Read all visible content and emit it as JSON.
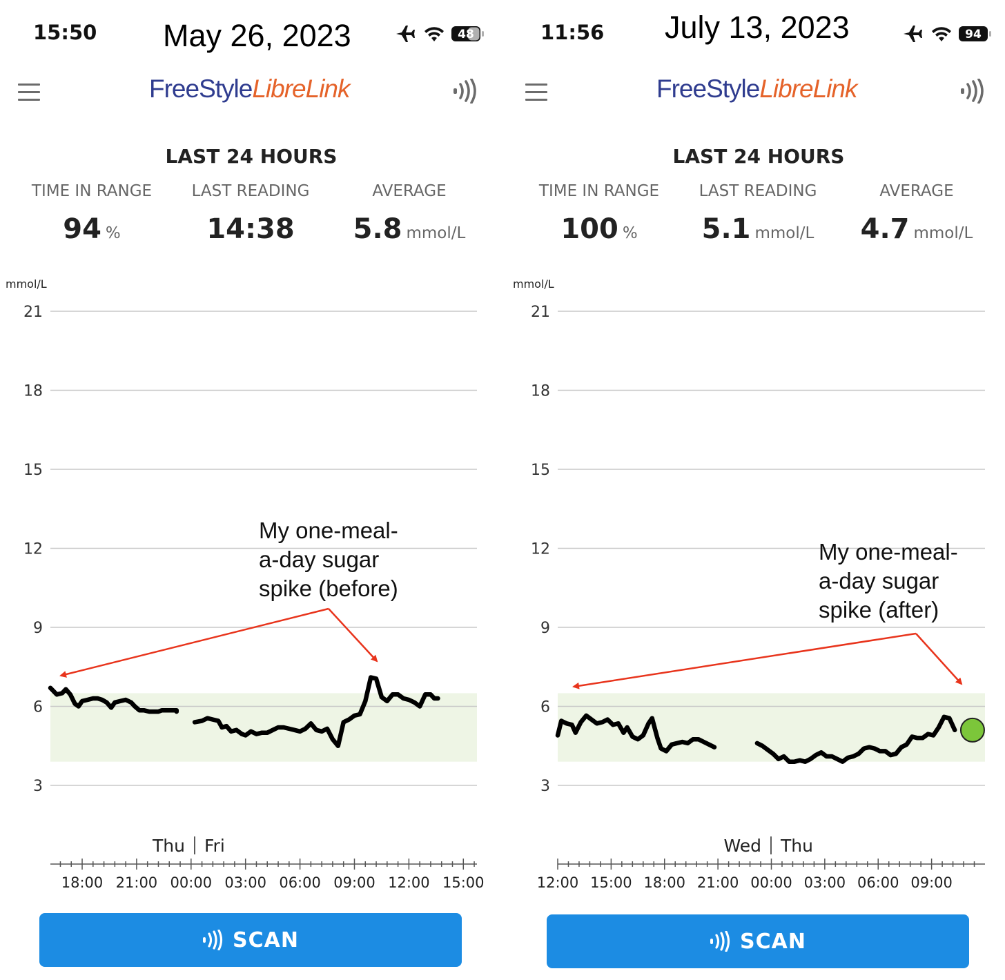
{
  "panels": [
    {
      "status_time": "15:50",
      "date": "May 26, 2023",
      "battery": "48",
      "app_logo": {
        "part1": "FreeStyle",
        "part2": "LibreLink"
      },
      "section_title": "LAST 24 HOURS",
      "stats": [
        {
          "label": "TIME IN RANGE",
          "value": "94",
          "unit": "%"
        },
        {
          "label": "LAST READING",
          "value": "14:38",
          "unit": ""
        },
        {
          "label": "AVERAGE",
          "value": "5.8",
          "unit": "mmol/L"
        }
      ],
      "scan_label": "SCAN",
      "icons": [
        "menu-icon",
        "airplane-icon",
        "wifi-icon",
        "battery-icon",
        "nfc-scan-icon"
      ],
      "colors": {
        "target_band": "#eef5e5",
        "glucose_line": "#000000",
        "annotation_arrow": "#e8341c",
        "scan_button": "#1c8ce3"
      }
    },
    {
      "status_time": "11:56",
      "date": "July 13, 2023",
      "battery": "94",
      "app_logo": {
        "part1": "FreeStyle",
        "part2": "LibreLink"
      },
      "section_title": "LAST 24 HOURS",
      "stats": [
        {
          "label": "TIME IN RANGE",
          "value": "100",
          "unit": "%"
        },
        {
          "label": "LAST READING",
          "value": "5.1",
          "unit": "mmol/L"
        },
        {
          "label": "AVERAGE",
          "value": "4.7",
          "unit": "mmol/L"
        }
      ],
      "scan_label": "SCAN",
      "icons": [
        "menu-icon",
        "airplane-icon",
        "wifi-icon",
        "battery-icon",
        "nfc-scan-icon"
      ],
      "colors": {
        "target_band": "#eef5e5",
        "glucose_line": "#000000",
        "current_reading_dot": "#7cc63a",
        "annotation_arrow": "#e8341c",
        "scan_button": "#1c8ce3"
      }
    }
  ],
  "chart_data": [
    {
      "type": "line",
      "ylabel": "mmol/L",
      "ylim": [
        1.5,
        22
      ],
      "yticks": [
        21,
        18,
        15,
        12,
        9,
        6,
        3
      ],
      "target_range": [
        3.9,
        6.5
      ],
      "xlim": [
        16.25,
        39.75
      ],
      "xtick_values": [
        18,
        21,
        24,
        27,
        30,
        33,
        36,
        39
      ],
      "xtick_labels": [
        "18:00",
        "21:00",
        "00:00",
        "03:00",
        "06:00",
        "09:00",
        "12:00",
        "15:00"
      ],
      "day_labels": [
        "Thu",
        "Fri"
      ],
      "day_boundary": 24,
      "annotation": "My one-meal-\na-day sugar\nspike (before)",
      "series": [
        {
          "segments": [
            [
              [
                16.25,
                6.7
              ],
              [
                16.6,
                6.45
              ],
              [
                16.9,
                6.5
              ],
              [
                17.1,
                6.65
              ],
              [
                17.35,
                6.45
              ],
              [
                17.6,
                6.1
              ],
              [
                17.8,
                6.0
              ],
              [
                18.0,
                6.2
              ],
              [
                18.3,
                6.25
              ],
              [
                18.6,
                6.3
              ],
              [
                18.85,
                6.3
              ],
              [
                19.1,
                6.25
              ],
              [
                19.35,
                6.15
              ],
              [
                19.6,
                5.95
              ],
              [
                19.8,
                6.15
              ],
              [
                20.1,
                6.2
              ],
              [
                20.4,
                6.25
              ],
              [
                20.7,
                6.15
              ],
              [
                20.9,
                6.0
              ],
              [
                21.15,
                5.85
              ],
              [
                21.4,
                5.85
              ],
              [
                21.7,
                5.8
              ],
              [
                21.9,
                5.8
              ],
              [
                22.2,
                5.8
              ],
              [
                22.4,
                5.85
              ],
              [
                23.2,
                5.85
              ],
              [
                23.2,
                5.8
              ]
            ],
            [
              [
                24.2,
                5.4
              ],
              [
                24.6,
                5.45
              ],
              [
                24.9,
                5.55
              ],
              [
                25.2,
                5.5
              ],
              [
                25.5,
                5.45
              ],
              [
                25.7,
                5.2
              ],
              [
                25.95,
                5.25
              ],
              [
                26.2,
                5.05
              ],
              [
                26.5,
                5.1
              ],
              [
                26.8,
                4.95
              ],
              [
                27.0,
                4.9
              ],
              [
                27.3,
                5.05
              ],
              [
                27.6,
                4.95
              ],
              [
                27.9,
                5.0
              ],
              [
                28.2,
                5.0
              ],
              [
                28.5,
                5.1
              ],
              [
                28.8,
                5.2
              ],
              [
                29.1,
                5.2
              ],
              [
                29.4,
                5.15
              ],
              [
                29.7,
                5.1
              ],
              [
                30.0,
                5.05
              ],
              [
                30.3,
                5.15
              ],
              [
                30.6,
                5.35
              ],
              [
                30.9,
                5.1
              ],
              [
                31.2,
                5.05
              ],
              [
                31.5,
                5.15
              ],
              [
                31.8,
                4.75
              ],
              [
                32.1,
                4.5
              ],
              [
                32.4,
                5.4
              ],
              [
                32.7,
                5.5
              ],
              [
                33.0,
                5.65
              ],
              [
                33.3,
                5.7
              ],
              [
                33.6,
                6.2
              ],
              [
                33.9,
                7.1
              ],
              [
                34.2,
                7.05
              ],
              [
                34.5,
                6.35
              ],
              [
                34.8,
                6.2
              ],
              [
                35.1,
                6.45
              ],
              [
                35.4,
                6.45
              ],
              [
                35.7,
                6.3
              ],
              [
                36.0,
                6.25
              ],
              [
                36.3,
                6.15
              ],
              [
                36.6,
                6.0
              ],
              [
                36.9,
                6.45
              ],
              [
                37.2,
                6.45
              ],
              [
                37.4,
                6.3
              ],
              [
                37.6,
                6.3
              ]
            ]
          ]
        }
      ]
    },
    {
      "type": "line",
      "ylabel": "mmol/L",
      "ylim": [
        1.5,
        22
      ],
      "yticks": [
        21,
        18,
        15,
        12,
        9,
        6,
        3
      ],
      "target_range": [
        3.9,
        6.5
      ],
      "xlim": [
        12.0,
        36.0
      ],
      "xtick_values": [
        12,
        15,
        18,
        21,
        24,
        27,
        30,
        33
      ],
      "xtick_labels": [
        "12:00",
        "15:00",
        "18:00",
        "21:00",
        "00:00",
        "03:00",
        "06:00",
        "09:00"
      ],
      "day_labels": [
        "Wed",
        "Thu"
      ],
      "day_boundary": 24,
      "annotation": "My one-meal-\na-day sugar\nspike (after)",
      "series": [
        {
          "segments": [
            [
              [
                12.0,
                4.9
              ],
              [
                12.2,
                5.45
              ],
              [
                12.5,
                5.35
              ],
              [
                12.8,
                5.3
              ],
              [
                13.0,
                5.0
              ],
              [
                13.3,
                5.4
              ],
              [
                13.6,
                5.65
              ],
              [
                13.9,
                5.5
              ],
              [
                14.2,
                5.35
              ],
              [
                14.5,
                5.4
              ],
              [
                14.8,
                5.5
              ],
              [
                15.1,
                5.3
              ],
              [
                15.4,
                5.35
              ],
              [
                15.7,
                5.0
              ],
              [
                15.9,
                5.2
              ],
              [
                16.2,
                4.85
              ],
              [
                16.5,
                4.75
              ],
              [
                16.8,
                4.9
              ],
              [
                17.1,
                5.35
              ],
              [
                17.3,
                5.55
              ],
              [
                17.6,
                4.8
              ],
              [
                17.8,
                4.4
              ],
              [
                18.1,
                4.3
              ],
              [
                18.4,
                4.55
              ],
              [
                18.7,
                4.6
              ],
              [
                19.0,
                4.65
              ],
              [
                19.3,
                4.6
              ],
              [
                19.6,
                4.75
              ],
              [
                19.9,
                4.75
              ],
              [
                20.2,
                4.65
              ],
              [
                20.5,
                4.55
              ],
              [
                20.8,
                4.45
              ]
            ],
            [
              [
                23.2,
                4.6
              ],
              [
                23.5,
                4.5
              ],
              [
                23.8,
                4.35
              ],
              [
                24.1,
                4.2
              ],
              [
                24.4,
                4.0
              ],
              [
                24.7,
                4.1
              ],
              [
                25.0,
                3.9
              ],
              [
                25.3,
                3.9
              ],
              [
                25.6,
                3.95
              ],
              [
                25.9,
                3.9
              ],
              [
                26.2,
                4.0
              ],
              [
                26.5,
                4.15
              ],
              [
                26.8,
                4.25
              ],
              [
                27.1,
                4.1
              ],
              [
                27.4,
                4.1
              ],
              [
                27.7,
                4.0
              ],
              [
                28.0,
                3.9
              ],
              [
                28.3,
                4.05
              ],
              [
                28.6,
                4.1
              ],
              [
                28.9,
                4.2
              ],
              [
                29.2,
                4.4
              ],
              [
                29.5,
                4.45
              ],
              [
                29.8,
                4.4
              ],
              [
                30.1,
                4.3
              ],
              [
                30.4,
                4.3
              ],
              [
                30.7,
                4.15
              ],
              [
                31.0,
                4.2
              ],
              [
                31.3,
                4.45
              ],
              [
                31.6,
                4.55
              ],
              [
                31.9,
                4.85
              ],
              [
                32.2,
                4.8
              ],
              [
                32.5,
                4.8
              ],
              [
                32.8,
                4.95
              ],
              [
                33.1,
                4.9
              ],
              [
                33.4,
                5.2
              ],
              [
                33.7,
                5.6
              ],
              [
                34.0,
                5.55
              ],
              [
                34.3,
                5.1
              ]
            ]
          ]
        }
      ],
      "current_reading": {
        "x": 35.3,
        "y": 5.1
      }
    }
  ]
}
